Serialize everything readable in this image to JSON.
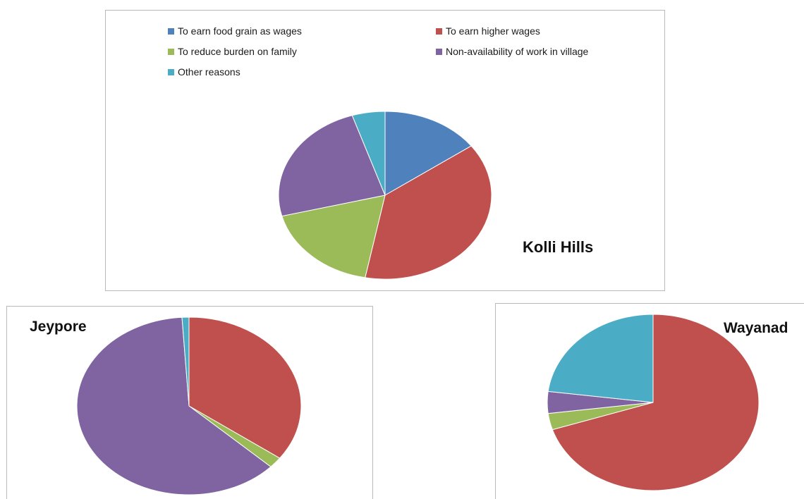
{
  "legend": [
    {
      "label": "To earn food grain as wages",
      "color": "#4F81BD"
    },
    {
      "label": "To earn higher wages",
      "color": "#C0504D"
    },
    {
      "label": "To reduce burden on family",
      "color": "#9BBB59"
    },
    {
      "label": "Non-availability of work in village",
      "color": "#8064A2"
    },
    {
      "label": "Other reasons",
      "color": "#4BACC6"
    }
  ],
  "chart_data": [
    {
      "type": "pie",
      "title": "Kolli Hills",
      "categories": [
        "To earn food grain as wages",
        "To earn higher wages",
        "To reduce burden on family",
        "Non-availability of work in village",
        "Other reasons"
      ],
      "values": [
        15,
        38,
        18,
        24,
        5
      ],
      "start_angle_deg": 0,
      "direction": "clockwise"
    },
    {
      "type": "pie",
      "title": "Jeypore",
      "categories": [
        "To earn food grain as wages",
        "To earn higher wages",
        "To reduce burden on family",
        "Non-availability of work in village",
        "Other reasons"
      ],
      "values": [
        0,
        35,
        2,
        62,
        1
      ],
      "start_angle_deg": 0,
      "direction": "clockwise"
    },
    {
      "type": "pie",
      "title": "Wayanad",
      "categories": [
        "To earn food grain as wages",
        "To earn higher wages",
        "To reduce burden on family",
        "Non-availability of work in village",
        "Other reasons"
      ],
      "values": [
        0,
        70,
        3,
        4,
        23
      ],
      "start_angle_deg": 0,
      "direction": "clockwise"
    }
  ]
}
